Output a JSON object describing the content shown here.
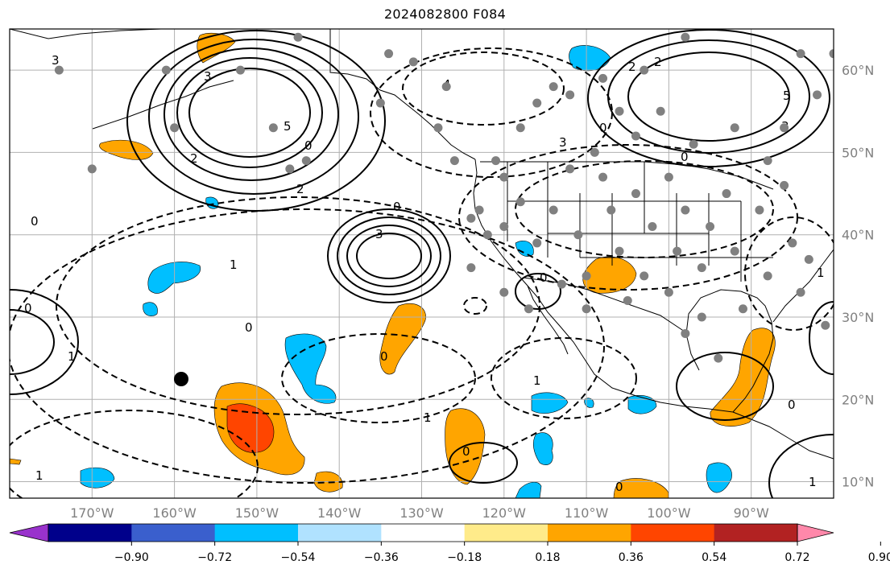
{
  "title": "2024082800 F084",
  "map": {
    "lon_range": [
      -180,
      -80
    ],
    "lat_range": [
      8,
      65
    ],
    "lon_ticks": [
      "170°W",
      "160°W",
      "150°W",
      "140°W",
      "130°W",
      "120°W",
      "110°W",
      "100°W",
      "90°W"
    ],
    "lat_ticks": [
      "60°N",
      "50°N",
      "40°N",
      "30°N",
      "20°N",
      "10°N"
    ],
    "gridlines": true,
    "contour_labels": [
      "3",
      "3",
      "2",
      "5",
      "0",
      "2",
      "0",
      "1",
      "3",
      "0",
      "0",
      "1",
      "0",
      "4",
      "2",
      "2",
      "0",
      "3",
      "5",
      "3",
      "0",
      "1",
      "0",
      "0",
      "1",
      "1",
      "0",
      "0",
      "1",
      "0",
      "1"
    ],
    "colors": {
      "grid": "#b0b0b0",
      "tick_text": "#808080",
      "station_dot": "#808080",
      "negative_blue": "#00bfff",
      "positive_orange": "#ffa500",
      "positive_red": "#ff4500",
      "positive_yellow": "#ffeb8a"
    }
  },
  "colorbar": {
    "colors": [
      "#9932cc",
      "#00008b",
      "#3a5fcd",
      "#00bfff",
      "#b0e2ff",
      "#ffffff",
      "#ffeb8a",
      "#ffa500",
      "#ff4500",
      "#b22222",
      "#ff88aa"
    ],
    "ticks": [
      "−0.90",
      "−0.72",
      "−0.54",
      "−0.36",
      "−0.18",
      "0.18",
      "0.36",
      "0.54",
      "0.72",
      "0.90"
    ],
    "extend": "both"
  }
}
